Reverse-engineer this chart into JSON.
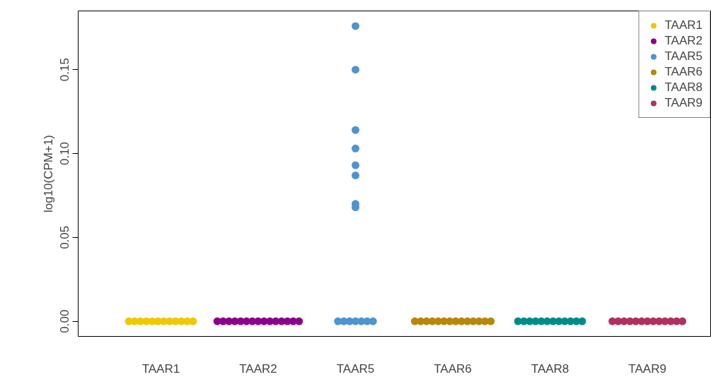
{
  "chart_data": {
    "type": "scatter",
    "ylabel": "log10(CPM+1)",
    "ylim": [
      -0.009,
      0.185
    ],
    "categories": [
      "TAAR1",
      "TAAR2",
      "TAAR5",
      "TAAR6",
      "TAAR8",
      "TAAR9"
    ],
    "yticks": [
      {
        "value": 0,
        "label": "0.00"
      },
      0.05,
      {
        "value": 0.1,
        "label": "0.10"
      },
      0.15
    ],
    "grid": false,
    "legend": "top right",
    "marker": "circle",
    "series": [
      {
        "name": "TAAR1",
        "color": "#f0c800",
        "x": [
          "TAAR1",
          "TAAR1",
          "TAAR1",
          "TAAR1",
          "TAAR1",
          "TAAR1",
          "TAAR1",
          "TAAR1",
          "TAAR1",
          "TAAR1",
          "TAAR1",
          "TAAR1"
        ],
        "values": [
          0,
          0,
          0,
          0,
          0,
          0,
          0,
          0,
          0,
          0,
          0,
          0
        ]
      },
      {
        "name": "TAAR2",
        "color": "#8b008b",
        "x": [
          "TAAR2",
          "TAAR2",
          "TAAR2",
          "TAAR2",
          "TAAR2",
          "TAAR2",
          "TAAR2",
          "TAAR2",
          "TAAR2",
          "TAAR2",
          "TAAR2",
          "TAAR2",
          "TAAR2",
          "TAAR2",
          "TAAR2"
        ],
        "values": [
          0,
          0,
          0,
          0,
          0,
          0,
          0,
          0,
          0,
          0,
          0,
          0,
          0,
          0,
          0
        ]
      },
      {
        "name": "TAAR5",
        "color": "#4f93cf",
        "x": [
          "TAAR5",
          "TAAR5",
          "TAAR5",
          "TAAR5",
          "TAAR5",
          "TAAR5",
          "TAAR5",
          "TAAR5",
          "TAAR5",
          "TAAR5",
          "TAAR5",
          "TAAR5",
          "TAAR5",
          "TAAR5",
          "TAAR5"
        ],
        "values": [
          0,
          0,
          0,
          0,
          0,
          0,
          0,
          0.176,
          0.15,
          0.114,
          0.103,
          0.093,
          0.087,
          0.068,
          0.07
        ]
      },
      {
        "name": "TAAR6",
        "color": "#b8860b",
        "x": [
          "TAAR6",
          "TAAR6",
          "TAAR6",
          "TAAR6",
          "TAAR6",
          "TAAR6",
          "TAAR6",
          "TAAR6",
          "TAAR6",
          "TAAR6",
          "TAAR6",
          "TAAR6",
          "TAAR6",
          "TAAR6"
        ],
        "values": [
          0,
          0,
          0,
          0,
          0,
          0,
          0,
          0,
          0,
          0,
          0,
          0,
          0,
          0
        ]
      },
      {
        "name": "TAAR8",
        "color": "#008b8b",
        "x": [
          "TAAR8",
          "TAAR8",
          "TAAR8",
          "TAAR8",
          "TAAR8",
          "TAAR8",
          "TAAR8",
          "TAAR8",
          "TAAR8",
          "TAAR8",
          "TAAR8",
          "TAAR8"
        ],
        "values": [
          0,
          0,
          0,
          0,
          0,
          0,
          0,
          0,
          0,
          0,
          0,
          0
        ]
      },
      {
        "name": "TAAR9",
        "color": "#b03060",
        "x": [
          "TAAR9",
          "TAAR9",
          "TAAR9",
          "TAAR9",
          "TAAR9",
          "TAAR9",
          "TAAR9",
          "TAAR9",
          "TAAR9",
          "TAAR9",
          "TAAR9",
          "TAAR9",
          "TAAR9"
        ],
        "values": [
          0,
          0,
          0,
          0,
          0,
          0,
          0,
          0,
          0,
          0,
          0,
          0,
          0
        ]
      }
    ]
  }
}
